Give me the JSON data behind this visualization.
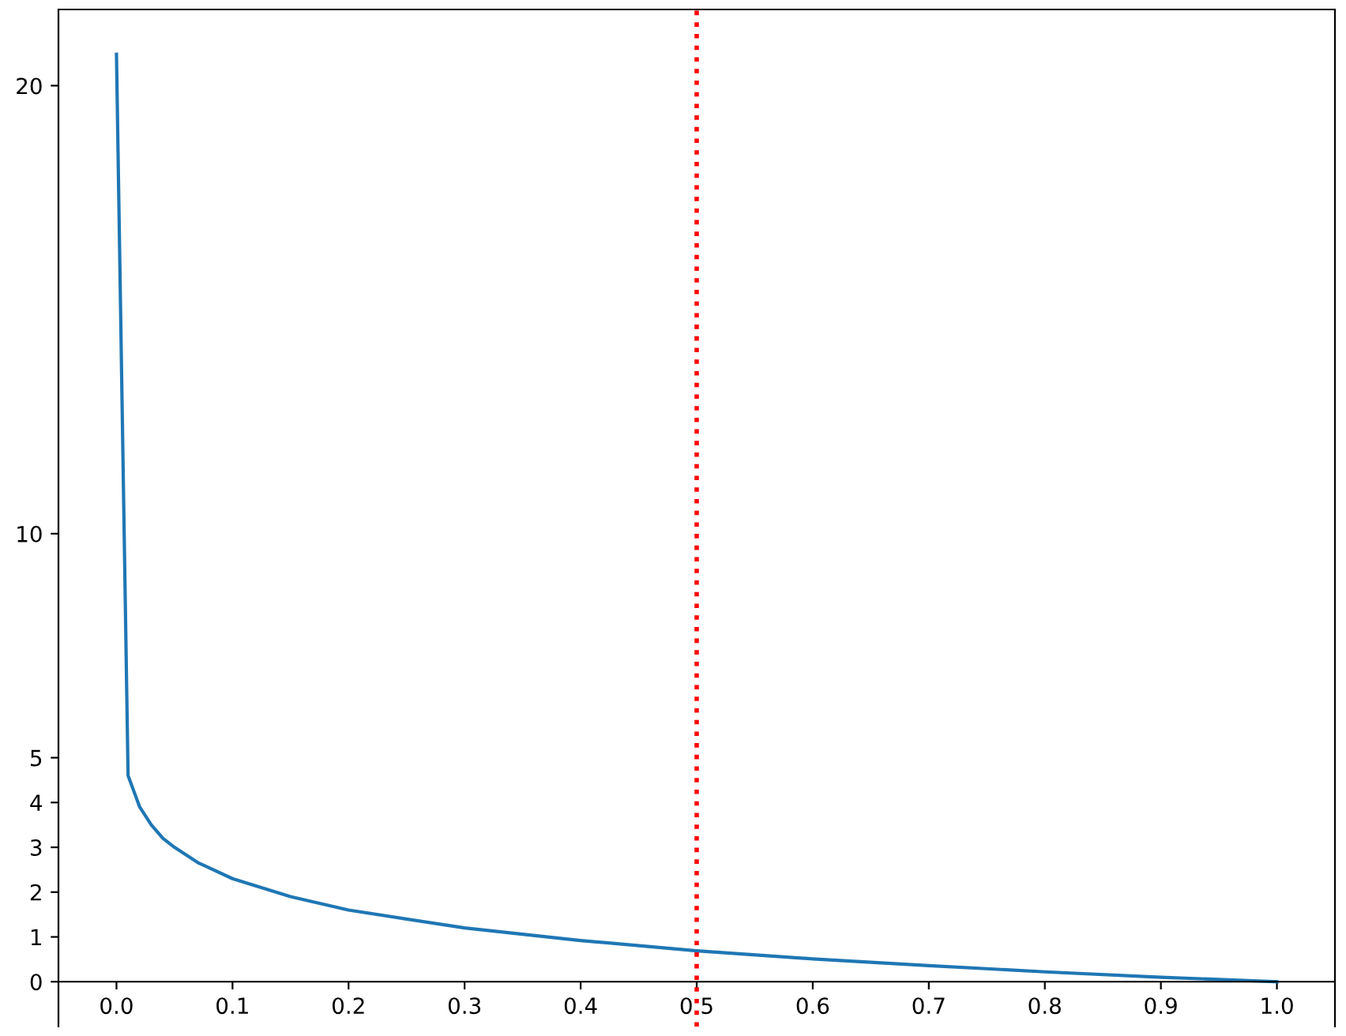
{
  "chart_data": {
    "type": "line",
    "x": [
      0,
      0.01,
      0.02,
      0.03,
      0.04,
      0.05,
      0.07,
      0.1,
      0.15,
      0.2,
      0.3,
      0.4,
      0.5,
      0.6,
      0.7,
      0.8,
      0.9,
      1.0
    ],
    "series": [
      {
        "color": "#1f77b4",
        "values": [
          20.7,
          4.6,
          3.9,
          3.5,
          3.2,
          3.0,
          2.66,
          2.3,
          1.9,
          1.6,
          1.2,
          0.92,
          0.69,
          0.51,
          0.36,
          0.22,
          0.1,
          0
        ]
      }
    ],
    "xlim": [
      -0.05,
      1.05
    ],
    "ylim": [
      -1,
      21.7
    ],
    "xticks": [
      {
        "value": 0,
        "label": "0.0"
      },
      0.1,
      0.2,
      0.3,
      0.4,
      0.5,
      0.6,
      0.7,
      0.8,
      0.9,
      {
        "value": 1,
        "label": "1.0"
      }
    ],
    "yticks": [
      0,
      1,
      2,
      3,
      4,
      5,
      10,
      20
    ],
    "ref_lines": [
      {
        "axis": "x",
        "value": 0.5,
        "color": "#ff0000",
        "line_style": "dotted"
      }
    ],
    "grid": false,
    "legend": false,
    "marker": "none",
    "line_style": "solid"
  }
}
